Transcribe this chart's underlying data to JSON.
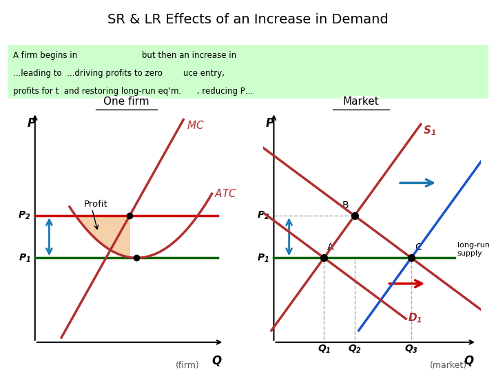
{
  "title": "SR & LR Effects of an Increase in Demand",
  "bg_color": "#ffffff",
  "green_bg": "#ccffcc",
  "text_line1": "A firm begins in                         but then an increase in",
  "text_line2": "...leading to  ...driving profits to zero        uce entry,",
  "text_line3": "profits for t  and restoring long-run eq’m.      , reducing P…",
  "left_title": "One firm",
  "right_title": "Market",
  "color_mc_atc": "#b03030",
  "color_p1_line_firm": "#006400",
  "color_p2_line_firm": "#cc0000",
  "color_s1": "#b03030",
  "color_s2": "#1a52cc",
  "color_d1": "#b03030",
  "color_d2": "#b03030",
  "color_lr_supply": "#006400",
  "color_profit_fill": "#f5c89a",
  "color_arrow_blue": "#1a7ab5",
  "color_arrow_red": "#cc0000",
  "color_dashed": "#aaaaaa"
}
